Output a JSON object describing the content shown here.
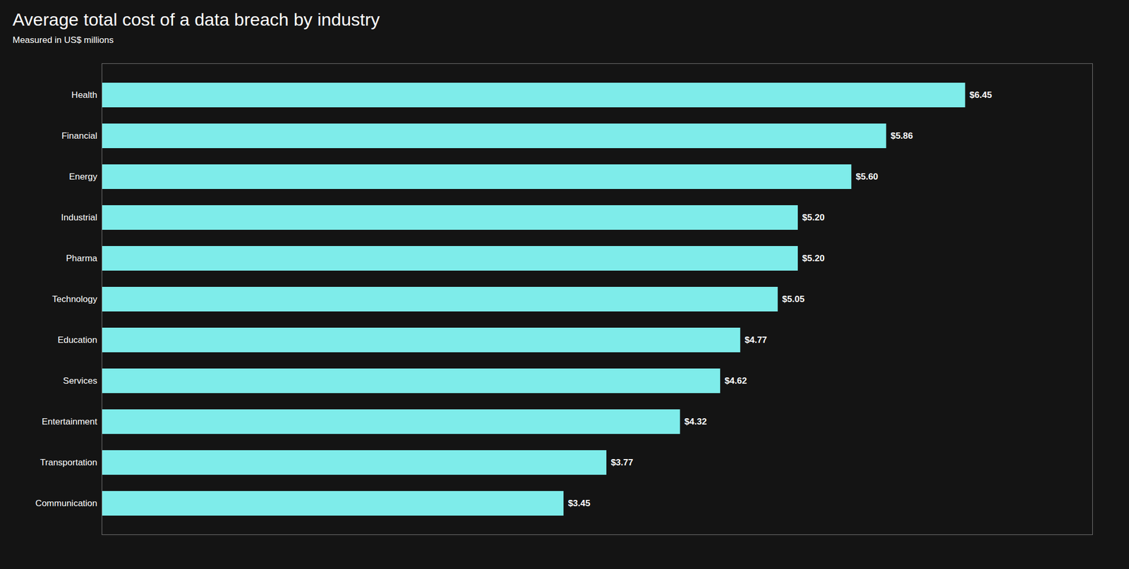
{
  "chart_data": {
    "type": "bar",
    "orientation": "horizontal",
    "title": "Average total cost of a data breach by industry",
    "subtitle": "Measured in US$ millions",
    "categories": [
      "Health",
      "Financial",
      "Energy",
      "Industrial",
      "Pharma",
      "Technology",
      "Education",
      "Services",
      "Entertainment",
      "Transportation",
      "Communication"
    ],
    "values": [
      6.45,
      5.86,
      5.6,
      5.2,
      5.2,
      5.05,
      4.77,
      4.62,
      4.32,
      3.77,
      3.45
    ],
    "value_labels": [
      "$6.45",
      "$5.86",
      "$5.60",
      "$5.20",
      "$5.20",
      "$5.05",
      "$4.77",
      "$4.62",
      "$4.32",
      "$3.77",
      "$3.45"
    ],
    "color": "#7EECEA",
    "xlim": [
      0,
      7.4
    ],
    "data_labels": true,
    "tick_labels": "y",
    "grid": false
  }
}
